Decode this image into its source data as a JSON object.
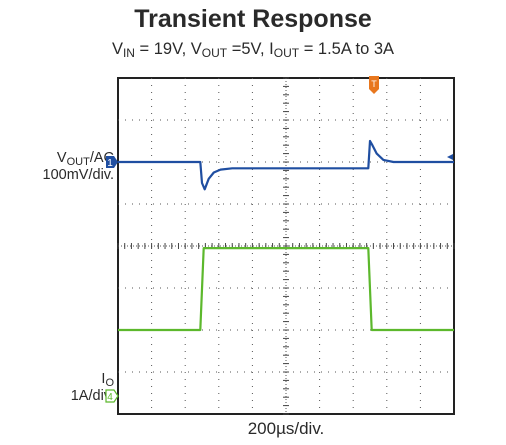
{
  "chart_data": {
    "type": "line",
    "title": "Transient Response",
    "subtitle": {
      "parts": [
        {
          "t": "V"
        },
        {
          "sub": "IN"
        },
        {
          "t": " = 19V, V"
        },
        {
          "sub": "OUT"
        },
        {
          "t": " =5V, I"
        },
        {
          "sub": "OUT"
        },
        {
          "t": " = 1.5A to 3A"
        }
      ]
    },
    "xlabel": "200µs/div.",
    "grid": true,
    "divisions": {
      "x": 10,
      "y": 8
    },
    "trigger_marker": "T",
    "channels": [
      {
        "name_parts": [
          {
            "t": "V"
          },
          {
            "sub": "OUT"
          },
          {
            "t": "/AC"
          }
        ],
        "scale": "100mV/div.",
        "marker": "1",
        "color": "#1f4ea1",
        "units": "div",
        "x": [
          0,
          2.45,
          2.5,
          2.58,
          2.7,
          2.85,
          3.05,
          3.4,
          7.45,
          7.5,
          7.57,
          7.7,
          7.9,
          8.2,
          8.6,
          10
        ],
        "y": [
          6.0,
          6.0,
          5.5,
          5.35,
          5.6,
          5.75,
          5.82,
          5.85,
          5.85,
          6.5,
          6.4,
          6.2,
          6.05,
          6.0,
          6.0,
          6.0
        ]
      },
      {
        "name_parts": [
          {
            "t": "I"
          },
          {
            "sub": "O"
          }
        ],
        "scale": "1A/div.",
        "marker": "4",
        "color": "#5cb82c",
        "units": "div",
        "x": [
          0,
          2.45,
          2.55,
          7.45,
          7.55,
          10
        ],
        "y": [
          2.0,
          2.0,
          3.95,
          3.95,
          2.0,
          2.0
        ]
      }
    ]
  }
}
